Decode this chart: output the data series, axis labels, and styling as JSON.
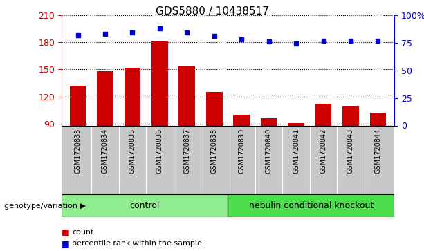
{
  "title": "GDS5880 / 10438517",
  "samples": [
    "GSM1720833",
    "GSM1720834",
    "GSM1720835",
    "GSM1720836",
    "GSM1720837",
    "GSM1720838",
    "GSM1720839",
    "GSM1720840",
    "GSM1720841",
    "GSM1720842",
    "GSM1720843",
    "GSM1720844"
  ],
  "counts": [
    132,
    148,
    152,
    181,
    153,
    125,
    100,
    96,
    91,
    112,
    109,
    102
  ],
  "percentiles": [
    82,
    83,
    84,
    88,
    84,
    81,
    78,
    76,
    74,
    77,
    77,
    77
  ],
  "ylim_left": [
    88,
    210
  ],
  "yticks_left": [
    90,
    120,
    150,
    180,
    210
  ],
  "ylim_right": [
    0,
    100
  ],
  "yticks_right": [
    0,
    25,
    50,
    75,
    100
  ],
  "bar_color": "#cc0000",
  "dot_color": "#0000cc",
  "grid_color": "#000000",
  "group_divider": 6,
  "groups": [
    {
      "label": "control",
      "start": 0,
      "end": 6
    },
    {
      "label": "nebulin conditional knockout",
      "start": 6,
      "end": 12
    }
  ],
  "group_label": "genotype/variation",
  "legend_items": [
    {
      "label": "count",
      "color": "#cc0000"
    },
    {
      "label": "percentile rank within the sample",
      "color": "#0000cc"
    }
  ],
  "xlabel_area_bg": "#c8c8c8",
  "group_area_bg": "#90ee90",
  "fig_width": 6.13,
  "fig_height": 3.63,
  "dpi": 100
}
